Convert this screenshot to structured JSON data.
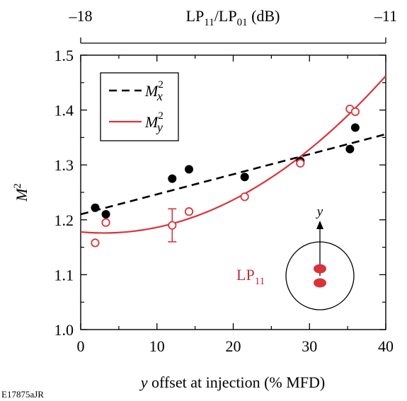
{
  "chart_data": {
    "type": "scatter",
    "xlabel": {
      "var": "y",
      "rest": " offset at injection (% MFD)"
    },
    "ylabel": {
      "base": "M",
      "sup": "2"
    },
    "xlim": [
      0,
      40
    ],
    "ylim": [
      1.0,
      1.5
    ],
    "x_ticks": [
      0,
      10,
      20,
      30,
      40
    ],
    "y_ticks": [
      1.0,
      1.1,
      1.2,
      1.3,
      1.4,
      1.5
    ],
    "top_axis": {
      "label": {
        "a": "LP",
        "a_sub": "11",
        "slash": "/",
        "b": "LP",
        "b_sub": "01",
        "unit": " (dB)"
      },
      "tick_labels": [
        "–18",
        "–11"
      ],
      "tick_x": [
        0,
        40
      ]
    },
    "series": [
      {
        "name": {
          "base": "M",
          "sup": "2",
          "sub": "x"
        },
        "marker": "filled-circle",
        "line": "dashed",
        "color": "#000000",
        "x": [
          1.9,
          3.3,
          12.0,
          14.2,
          21.5,
          28.8,
          35.3,
          36.0
        ],
        "y": [
          1.222,
          1.21,
          1.275,
          1.292,
          1.278,
          1.307,
          1.329,
          1.368
        ],
        "fit": {
          "type": "linear",
          "x": [
            0,
            40
          ],
          "y": [
            1.21,
            1.356
          ]
        }
      },
      {
        "name": {
          "base": "M",
          "sup": "2",
          "sub": "y"
        },
        "marker": "open-circle",
        "line": "solid",
        "color": "#d9333a",
        "x": [
          1.9,
          3.3,
          12.0,
          14.2,
          21.5,
          28.8,
          35.3,
          36.0
        ],
        "y": [
          1.158,
          1.195,
          1.19,
          1.215,
          1.242,
          1.303,
          1.402,
          1.397
        ],
        "error_bar": {
          "x": 12.0,
          "y": 1.19,
          "err": 0.03
        },
        "fit": {
          "type": "quadratic",
          "vertex_x": 3.0,
          "vertex_y": 1.176,
          "a": 0.000209
        }
      }
    ],
    "inset": {
      "label": {
        "base": "LP",
        "sub": "11"
      },
      "axis_label": "y",
      "lobe_color": "#d9333a",
      "circle_color": "#000000"
    },
    "legend_position": "top-left",
    "grid": false
  },
  "credit": "E17875aJR"
}
